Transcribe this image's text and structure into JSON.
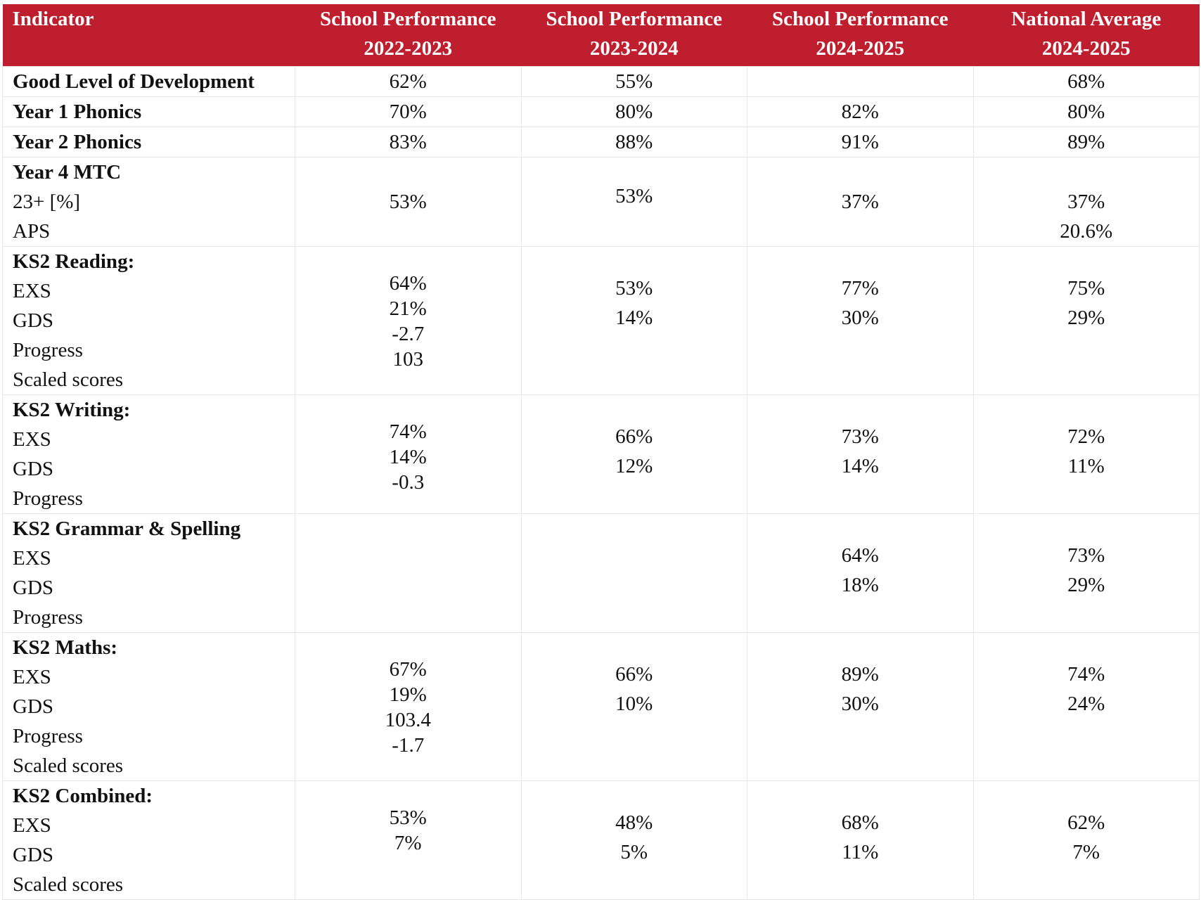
{
  "header": {
    "indicator": "Indicator",
    "col1": [
      "School Performance",
      "2022-2023"
    ],
    "col2": [
      "School Performance",
      "2023-2024"
    ],
    "col3": [
      "School Performance",
      "2024-2025"
    ],
    "col4": [
      "National Average",
      "2024-2025"
    ]
  },
  "rows": [
    {
      "label": [
        "Good Level of Development"
      ],
      "c1": [
        "62%"
      ],
      "c2": [
        "55%"
      ],
      "c3": [],
      "c4": [
        "68%"
      ]
    },
    {
      "label": [
        "Year 1 Phonics"
      ],
      "c1": [
        "70%"
      ],
      "c2": [
        "80%"
      ],
      "c3": [
        "82%"
      ],
      "c4": [
        "80%"
      ]
    },
    {
      "label": [
        "Year 2 Phonics"
      ],
      "c1": [
        "83%"
      ],
      "c2": [
        "88%"
      ],
      "c3": [
        "91%"
      ],
      "c4": [
        "89%"
      ]
    },
    {
      "label": [
        "Year 4 MTC",
        "23+ [%]",
        "APS"
      ],
      "c1": [
        "53%"
      ],
      "c2": [
        "53%"
      ],
      "c3": [
        "37%"
      ],
      "c4": [
        "37%",
        "20.6%"
      ]
    },
    {
      "label": [
        "KS2 Reading:",
        "EXS",
        "GDS",
        "Progress",
        "Scaled scores"
      ],
      "c1": [
        "64%",
        "21%",
        "-2.7",
        "103"
      ],
      "c2": [
        "53%",
        "14%"
      ],
      "c3": [
        "77%",
        "30%"
      ],
      "c4": [
        "75%",
        "29%"
      ]
    },
    {
      "label": [
        "KS2 Writing:",
        "EXS",
        "GDS",
        "Progress"
      ],
      "c1": [
        "74%",
        "14%",
        "-0.3"
      ],
      "c2": [
        "66%",
        "12%"
      ],
      "c3": [
        "73%",
        "14%"
      ],
      "c4": [
        "72%",
        "11%"
      ]
    },
    {
      "label": [
        "KS2 Grammar & Spelling",
        "EXS",
        "GDS",
        "Progress"
      ],
      "c1": [],
      "c2": [],
      "c3": [
        "64%",
        "18%"
      ],
      "c4": [
        "73%",
        "29%"
      ]
    },
    {
      "label": [
        "KS2 Maths:",
        "EXS",
        "GDS",
        "Progress",
        "Scaled scores"
      ],
      "c1": [
        "67%",
        "19%",
        "103.4",
        "-1.7"
      ],
      "c2": [
        "66%",
        "10%"
      ],
      "c3": [
        "89%",
        "30%"
      ],
      "c4": [
        "74%",
        "24%"
      ]
    },
    {
      "label": [
        "KS2 Combined:",
        "EXS",
        "GDS",
        "Scaled scores"
      ],
      "c1": [
        "53%",
        "7%"
      ],
      "c2": [
        "48%",
        "5%"
      ],
      "c3": [
        "68%",
        "11%"
      ],
      "c4": [
        "62%",
        "7%"
      ]
    }
  ]
}
